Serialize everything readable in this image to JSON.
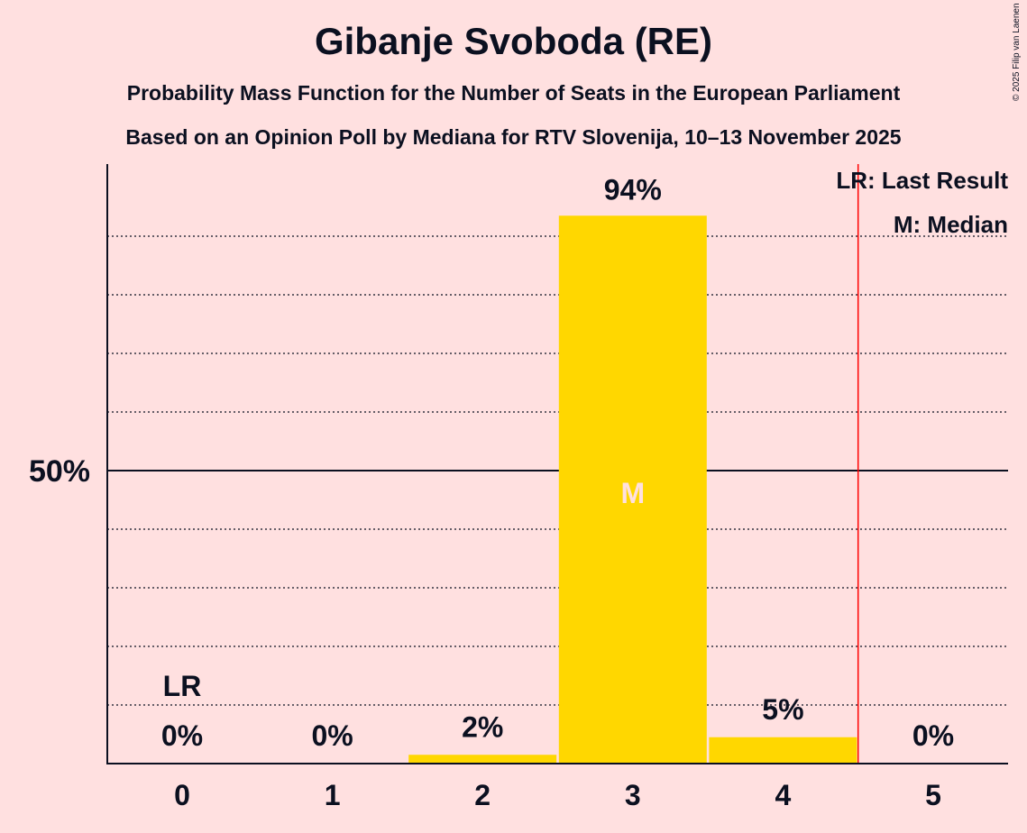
{
  "copyright": "© 2025 Filip van Laenen",
  "chart_data": {
    "type": "bar",
    "title": "Gibanje Svoboda (RE)",
    "subtitle": "Probability Mass Function for the Number of Seats in the European Parliament",
    "subtitle2": "Based on an Opinion Poll by Mediana for RTV Slovenija, 10–13 November 2025",
    "categories": [
      "0",
      "1",
      "2",
      "3",
      "4",
      "5"
    ],
    "values": [
      0,
      0,
      1.5,
      93.5,
      4.5,
      0
    ],
    "data_labels": [
      "0%",
      "0%",
      "2%",
      "94%",
      "5%",
      "0%"
    ],
    "ylim": [
      0,
      100
    ],
    "y_tick_labels": [
      {
        "value": 50,
        "label": "50%"
      }
    ],
    "gridlines": [
      10,
      20,
      30,
      40,
      60,
      70,
      80,
      90
    ],
    "last_result_seat": 0,
    "last_result_label": "LR",
    "median_seat": 3,
    "median_label": "M",
    "red_line_at": 4.5,
    "legend": [
      "LR: Last Result",
      "M: Median"
    ],
    "legend_position": "top-right",
    "colors": {
      "bar": "#FFD700",
      "background": "#FFE0E0",
      "red_line": "#FF0000",
      "median_text": "#FFE0E0"
    }
  }
}
